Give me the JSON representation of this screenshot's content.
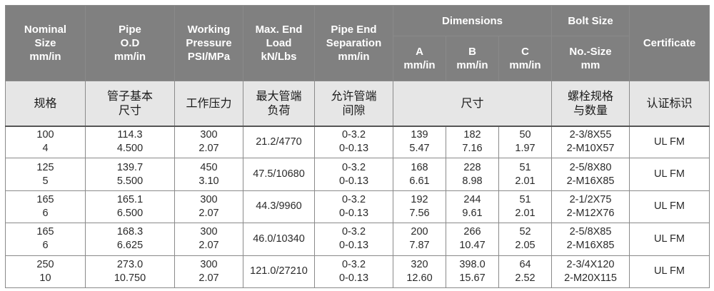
{
  "header": {
    "nominal_size": [
      "Nominal",
      "Size",
      "mm/in"
    ],
    "pipe_od": [
      "Pipe",
      "O.D",
      "mm/in"
    ],
    "working_pressure": [
      "Working",
      "Pressure",
      "PSI/MPa"
    ],
    "max_end_load": [
      "Max. End",
      "Load",
      "kN/Lbs"
    ],
    "pipe_end_separation": [
      "Pipe End",
      "Separation",
      "mm/in"
    ],
    "dimensions": "Dimensions",
    "dim_a": [
      "A",
      "mm/in"
    ],
    "dim_b": [
      "B",
      "mm/in"
    ],
    "dim_c": [
      "C",
      "mm/in"
    ],
    "bolt_size": "Bolt Size",
    "bolt_sub": [
      "No.-Size",
      "mm"
    ],
    "certificate": "Certificate"
  },
  "header_cn": {
    "nominal_size": [
      "规格"
    ],
    "pipe_od": [
      "管子基本",
      "尺寸"
    ],
    "working_pressure": [
      "工作压力"
    ],
    "max_end_load": [
      "最大管端",
      "负荷"
    ],
    "pipe_end_separation": [
      "允许管端",
      "间隙"
    ],
    "dimensions": [
      "尺寸"
    ],
    "bolt_size": [
      "螺栓规格",
      "与数量"
    ],
    "certificate": [
      "认证标识"
    ]
  },
  "rows": [
    {
      "size": [
        "100",
        "4"
      ],
      "od": [
        "114.3",
        "4.500"
      ],
      "pressure": [
        "300",
        "2.07"
      ],
      "load": "21.2/4770",
      "sep": [
        "0-3.2",
        "0-0.13"
      ],
      "a": [
        "139",
        "5.47"
      ],
      "b": [
        "182",
        "7.16"
      ],
      "c": [
        "50",
        "1.97"
      ],
      "bolt": [
        "2-3/8X55",
        "2-M10X57"
      ],
      "cert": "UL FM"
    },
    {
      "size": [
        "125",
        "5"
      ],
      "od": [
        "139.7",
        "5.500"
      ],
      "pressure": [
        "450",
        "3.10"
      ],
      "load": "47.5/10680",
      "sep": [
        "0-3.2",
        "0-0.13"
      ],
      "a": [
        "168",
        "6.61"
      ],
      "b": [
        "228",
        "8.98"
      ],
      "c": [
        "51",
        "2.01"
      ],
      "bolt": [
        "2-5/8X80",
        "2-M16X85"
      ],
      "cert": "UL FM"
    },
    {
      "size": [
        "165",
        "6"
      ],
      "od": [
        "165.1",
        "6.500"
      ],
      "pressure": [
        "300",
        "2.07"
      ],
      "load": "44.3/9960",
      "sep": [
        "0-3.2",
        "0-0.13"
      ],
      "a": [
        "192",
        "7.56"
      ],
      "b": [
        "244",
        "9.61"
      ],
      "c": [
        "51",
        "2.01"
      ],
      "bolt": [
        "2-1/2X75",
        "2-M12X76"
      ],
      "cert": "UL FM"
    },
    {
      "size": [
        "165",
        "6"
      ],
      "od": [
        "168.3",
        "6.625"
      ],
      "pressure": [
        "300",
        "2.07"
      ],
      "load": "46.0/10340",
      "sep": [
        "0-3.2",
        "0-0.13"
      ],
      "a": [
        "200",
        "7.87"
      ],
      "b": [
        "266",
        "10.47"
      ],
      "c": [
        "52",
        "2.05"
      ],
      "bolt": [
        "2-5/8X85",
        "2-M16X85"
      ],
      "cert": "UL FM"
    },
    {
      "size": [
        "250",
        "10"
      ],
      "od": [
        "273.0",
        "10.750"
      ],
      "pressure": [
        "300",
        "2.07"
      ],
      "load": "121.0/27210",
      "sep": [
        "0-3.2",
        "0-0.13"
      ],
      "a": [
        "320",
        "12.60"
      ],
      "b": [
        "398.0",
        "15.67"
      ],
      "c": [
        "64",
        "2.52"
      ],
      "bolt": [
        "2-3/4X120",
        "2-M20X115"
      ],
      "cert": "UL FM"
    }
  ],
  "colors": {
    "header_bg": "#808080",
    "subheader_bg": "#e6e6e6",
    "border": "#8a8a8a"
  }
}
